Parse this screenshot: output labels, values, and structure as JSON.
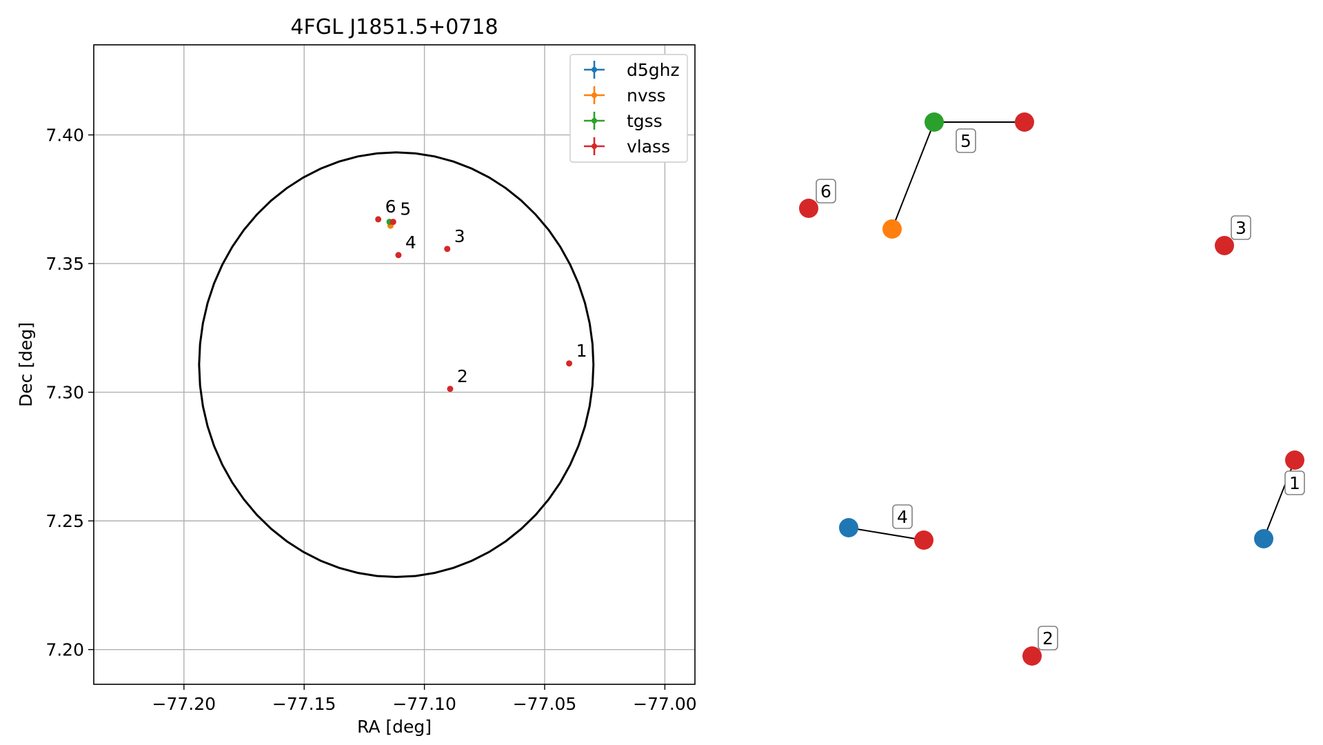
{
  "chart_data": [
    {
      "type": "scatter",
      "title": "4FGL J1851.5+0718",
      "xlabel": "RA [deg]",
      "ylabel": "Dec [deg]",
      "xlim": [
        -77.2375,
        -76.9875
      ],
      "ylim": [
        7.1865,
        7.435
      ],
      "xticks": [
        -77.2,
        -77.15,
        -77.1,
        -77.05,
        -77.0
      ],
      "xtick_labels": [
        "−77.20",
        "−77.15",
        "−77.10",
        "−77.05",
        "−77.00"
      ],
      "yticks": [
        7.2,
        7.25,
        7.3,
        7.35,
        7.4
      ],
      "ytick_labels": [
        "7.20",
        "7.25",
        "7.30",
        "7.35",
        "7.40"
      ],
      "grid": true,
      "legend_position": "top-right",
      "ellipse": {
        "center": [
          -77.1117,
          7.3107
        ],
        "semi_axis_ra": 0.082,
        "semi_axis_dec": 0.0825
      },
      "series": [
        {
          "name": "d5ghz",
          "color": "#1f77b4",
          "points": []
        },
        {
          "name": "nvss",
          "color": "#ff7f0e",
          "points": [
            {
              "x": -77.1141,
              "y": 7.3647
            }
          ]
        },
        {
          "name": "tgss",
          "color": "#2ca02c",
          "points": [
            {
              "x": -77.1145,
              "y": 7.3662
            }
          ]
        },
        {
          "name": "vlass",
          "color": "#d62728",
          "points": [
            {
              "x": -77.0398,
              "y": 7.3112
            },
            {
              "x": -77.0893,
              "y": 7.3013
            },
            {
              "x": -77.0905,
              "y": 7.3557
            },
            {
              "x": -77.1108,
              "y": 7.3533
            },
            {
              "x": -77.113,
              "y": 7.3662
            },
            {
              "x": -77.1192,
              "y": 7.3672
            }
          ]
        }
      ],
      "annotations": [
        {
          "text": "1",
          "x": -77.0398,
          "y": 7.3112
        },
        {
          "text": "2",
          "x": -77.0893,
          "y": 7.3013
        },
        {
          "text": "3",
          "x": -77.0905,
          "y": 7.3557
        },
        {
          "text": "4",
          "x": -77.1108,
          "y": 7.3533
        },
        {
          "text": "5",
          "x": -77.113,
          "y": 7.3662
        },
        {
          "text": "6",
          "x": -77.1192,
          "y": 7.3672
        }
      ]
    },
    {
      "type": "network",
      "node_colors": {
        "d5ghz": "#1f77b4",
        "nvss": "#ff7f0e",
        "tgss": "#2ca02c",
        "vlass": "#d62728"
      },
      "groups": [
        "1",
        "2",
        "3",
        "4",
        "5",
        "6"
      ]
    }
  ]
}
